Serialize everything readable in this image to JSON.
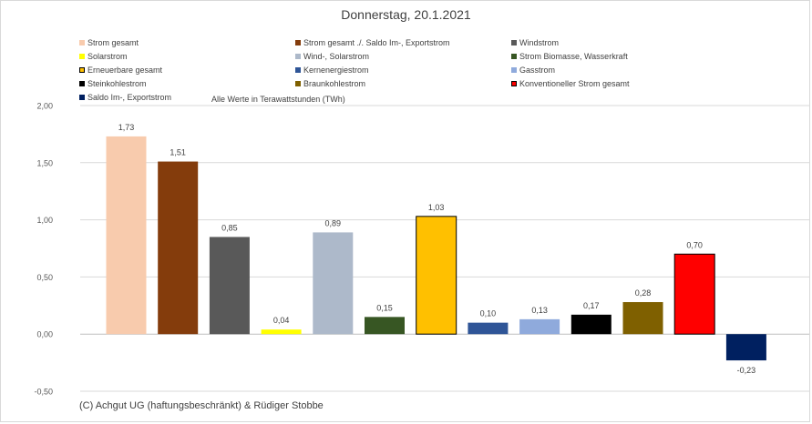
{
  "chart_data": {
    "type": "bar",
    "title": "Donnerstag, 20.1.2021",
    "note": "Alle Werte in Terawattstunden (TWh)",
    "copyright": "(C) Achgut UG (haftungsbeschränkt) & Rüdiger Stobbe",
    "ylim": [
      -0.5,
      2.0
    ],
    "yticks": [
      2.0,
      1.5,
      1.0,
      0.5,
      0.0,
      -0.5
    ],
    "ytick_labels": [
      "2,00",
      "1,50",
      "1,00",
      "0,50",
      "0,00",
      "-0,50"
    ],
    "gridlines": true,
    "categories": [
      "Strom gesamt",
      "Strom gesamt ./. Saldo Im-, Exportstrom",
      "Windstrom",
      "Solarstrom",
      "Wind-, Solarstrom",
      "Strom Biomasse, Wasserkraft",
      "Erneuerbare gesamt",
      "Kernenergiestrom",
      "Gasstrom",
      "Steinkohlestrom",
      "Braunkohlestrom",
      "Konventioneller Strom gesamt",
      "Saldo Im-, Exportstrom"
    ],
    "values": [
      1.73,
      1.51,
      0.85,
      0.04,
      0.89,
      0.15,
      1.03,
      0.1,
      0.13,
      0.17,
      0.28,
      0.7,
      -0.23
    ],
    "value_labels": [
      "1,73",
      "1,51",
      "0,85",
      "0,04",
      "0,89",
      "0,15",
      "1,03",
      "0,10",
      "0,13",
      "0,17",
      "0,28",
      "0,70",
      "-0,23"
    ],
    "colors": [
      "#f8cbad",
      "#843c0c",
      "#595959",
      "#ffff00",
      "#adb9ca",
      "#375623",
      "#ffc000",
      "#2f5597",
      "#8faadc",
      "#000000",
      "#7f6000",
      "#ff0000",
      "#002060"
    ],
    "outlined": [
      false,
      false,
      false,
      false,
      false,
      false,
      true,
      false,
      false,
      false,
      false,
      true,
      false
    ]
  }
}
